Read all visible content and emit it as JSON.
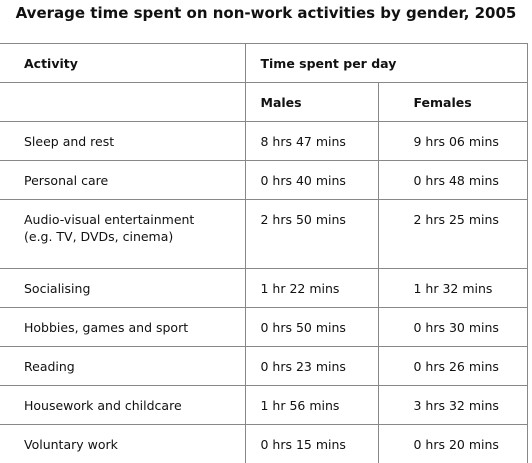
{
  "title": "Average time spent on non-work activities by gender, 2005",
  "table": {
    "header": [
      "Activity",
      "Time spent per day"
    ],
    "subheader": [
      "Males",
      "Females"
    ],
    "rows": [
      [
        "Sleep and rest",
        "8 hrs 47 mins",
        "9 hrs 06 mins"
      ],
      [
        "Personal care",
        "0 hrs 40 mins",
        "0 hrs 48 mins"
      ],
      [
        "Audio-visual entertainment (e.g. TV, DVDs, cinema)",
        "2 hrs 50 mins",
        "2 hrs 25 mins"
      ],
      [
        "Socialising",
        "1 hr 22 mins",
        "1 hr 32 mins"
      ],
      [
        "Hobbies, games and sport",
        "0 hrs 50 mins",
        "0 hrs 30 mins"
      ],
      [
        "Reading",
        "0 hrs 23 mins",
        "0 hrs 26 mins"
      ],
      [
        "Housework and childcare",
        "1 hr 56 mins",
        "3 hrs 32 mins"
      ],
      [
        "Voluntary work",
        "0 hrs 15 mins",
        "0 hrs 20 mins"
      ]
    ]
  }
}
